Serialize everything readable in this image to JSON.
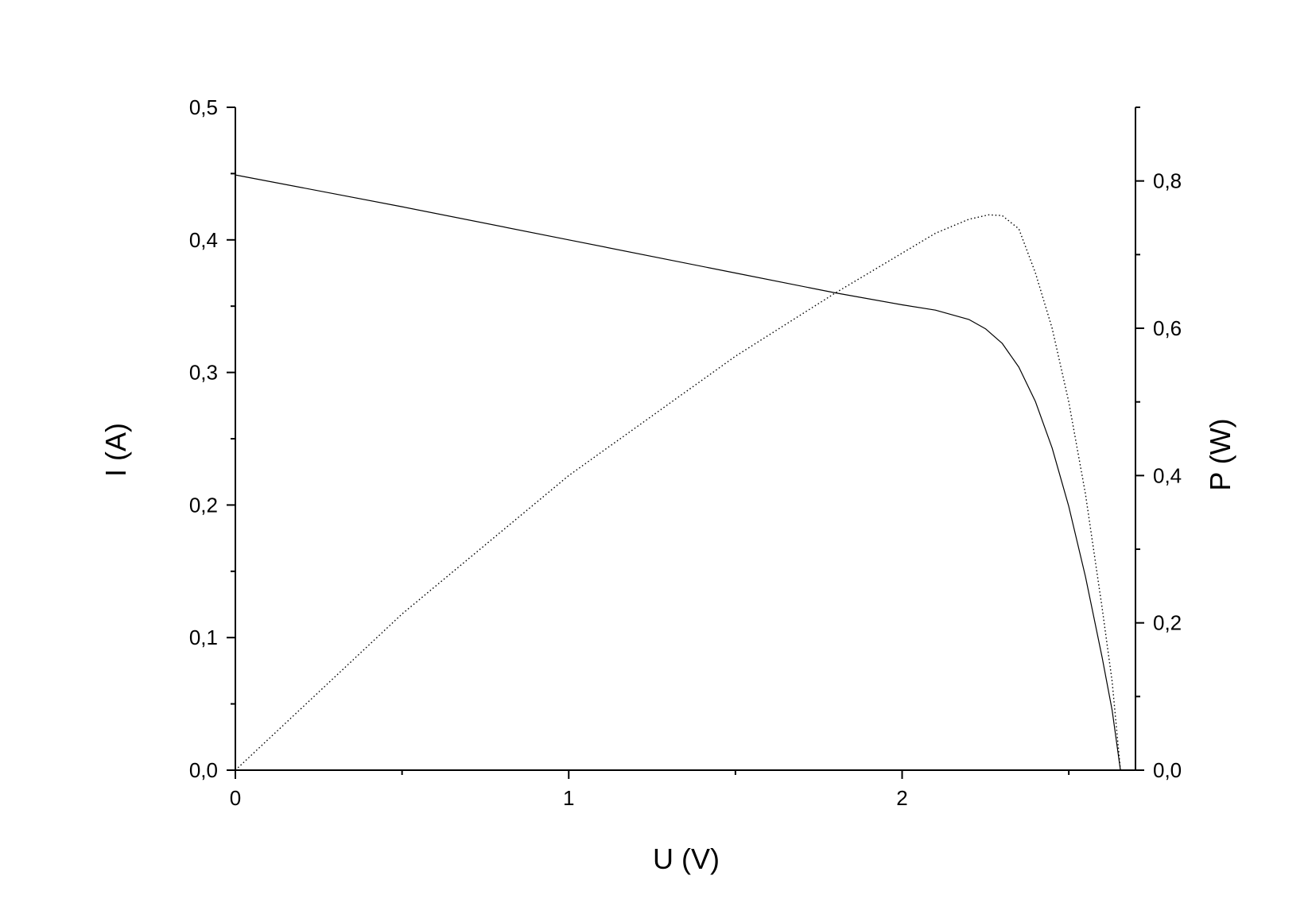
{
  "chart_data": {
    "type": "line",
    "xlabel": "U (V)",
    "ylabel": "I (A)",
    "y2label": "P (W)",
    "xlim": [
      0,
      2.7
    ],
    "ylim": [
      0,
      0.5
    ],
    "y2lim": [
      0,
      0.9
    ],
    "x_ticks": [
      0,
      1,
      2
    ],
    "x_tick_labels": [
      "0",
      "1",
      "2"
    ],
    "y_ticks": [
      0,
      0.1,
      0.2,
      0.3,
      0.4,
      0.5
    ],
    "y_tick_labels": [
      "0,0",
      "0,1",
      "0,2",
      "0,3",
      "0,4",
      "0,5"
    ],
    "y2_ticks": [
      0,
      0.2,
      0.4,
      0.6,
      0.8
    ],
    "y2_tick_labels": [
      "0,0",
      "0,2",
      "0,4",
      "0,6",
      "0,8"
    ],
    "grid": false,
    "series": [
      {
        "axis": "left",
        "style": "solid",
        "points": [
          [
            0,
            0.449
          ],
          [
            0.5,
            0.425
          ],
          [
            1.0,
            0.4
          ],
          [
            1.5,
            0.375
          ],
          [
            1.8,
            0.36
          ],
          [
            2.0,
            0.351
          ],
          [
            2.1,
            0.347
          ],
          [
            2.2,
            0.34
          ],
          [
            2.25,
            0.333
          ],
          [
            2.3,
            0.322
          ],
          [
            2.35,
            0.304
          ],
          [
            2.4,
            0.278
          ],
          [
            2.45,
            0.243
          ],
          [
            2.5,
            0.199
          ],
          [
            2.55,
            0.146
          ],
          [
            2.6,
            0.085
          ],
          [
            2.63,
            0.045
          ],
          [
            2.655,
            0.0
          ]
        ]
      },
      {
        "axis": "right",
        "style": "dotted",
        "points": [
          [
            0,
            0.0
          ],
          [
            0.5,
            0.212
          ],
          [
            1.0,
            0.4
          ],
          [
            1.5,
            0.562
          ],
          [
            1.8,
            0.648
          ],
          [
            2.0,
            0.702
          ],
          [
            2.1,
            0.729
          ],
          [
            2.2,
            0.748
          ],
          [
            2.26,
            0.754
          ],
          [
            2.3,
            0.753
          ],
          [
            2.35,
            0.735
          ],
          [
            2.4,
            0.675
          ],
          [
            2.45,
            0.6
          ],
          [
            2.5,
            0.5
          ],
          [
            2.55,
            0.375
          ],
          [
            2.6,
            0.22
          ],
          [
            2.63,
            0.12
          ],
          [
            2.655,
            0.0
          ]
        ]
      }
    ]
  }
}
